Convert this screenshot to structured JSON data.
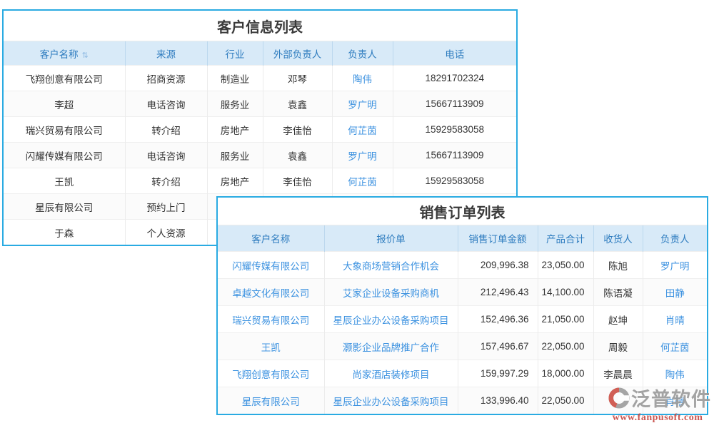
{
  "colors": {
    "table_border": "#2aabe2",
    "header_bg": "#d8eaf8",
    "header_text": "#2e7cbf",
    "link_text": "#3c92e0",
    "body_text": "#333333",
    "watermark_red": "#c4423c",
    "watermark_gray": "#979797"
  },
  "customer_table": {
    "title": "客户信息列表",
    "sort_icon": "⇅",
    "columns": [
      "客户名称",
      "来源",
      "行业",
      "外部负责人",
      "负责人",
      "电话"
    ],
    "rows": [
      {
        "name": "飞翔创意有限公司",
        "source": "招商资源",
        "industry": "制造业",
        "external": "邓琴",
        "owner": "陶伟",
        "phone": "18291702324"
      },
      {
        "name": "李超",
        "source": "电话咨询",
        "industry": "服务业",
        "external": "袁鑫",
        "owner": "罗广明",
        "phone": "15667113909"
      },
      {
        "name": "瑞兴贸易有限公司",
        "source": "转介绍",
        "industry": "房地产",
        "external": "李佳怡",
        "owner": "何芷茵",
        "phone": "15929583058"
      },
      {
        "name": "闪耀传媒有限公司",
        "source": "电话咨询",
        "industry": "服务业",
        "external": "袁鑫",
        "owner": "罗广明",
        "phone": "15667113909"
      },
      {
        "name": "王凯",
        "source": "转介绍",
        "industry": "房地产",
        "external": "李佳怡",
        "owner": "何芷茵",
        "phone": "15929583058"
      },
      {
        "name": "星辰有限公司",
        "source": "预约上门",
        "industry": "",
        "external": "",
        "owner": "",
        "phone": ""
      },
      {
        "name": "于森",
        "source": "个人资源",
        "industry": "",
        "external": "",
        "owner": "",
        "phone": ""
      }
    ]
  },
  "order_table": {
    "title": "销售订单列表",
    "columns": [
      "客户名称",
      "报价单",
      "销售订单金额",
      "产品合计",
      "收货人",
      "负责人"
    ],
    "rows": [
      {
        "customer": "闪耀传媒有限公司",
        "quote": "大象商场营销合作机会",
        "amount": "209,996.38",
        "product_total": "23,050.00",
        "consignee": "陈旭",
        "owner": "罗广明"
      },
      {
        "customer": "卓越文化有限公司",
        "quote": "艾家企业设备采购商机",
        "amount": "212,496.43",
        "product_total": "14,100.00",
        "consignee": "陈语凝",
        "owner": "田静"
      },
      {
        "customer": "瑞兴贸易有限公司",
        "quote": "星辰企业办公设备采购项目",
        "amount": "152,496.36",
        "product_total": "21,050.00",
        "consignee": "赵坤",
        "owner": "肖晴"
      },
      {
        "customer": "王凯",
        "quote": "灏影企业品牌推广合作",
        "amount": "157,496.67",
        "product_total": "22,050.00",
        "consignee": "周毅",
        "owner": "何芷茵"
      },
      {
        "customer": "飞翔创意有限公司",
        "quote": "尚家酒店装修项目",
        "amount": "159,997.29",
        "product_total": "18,000.00",
        "consignee": "李晨晨",
        "owner": "陶伟"
      },
      {
        "customer": "星辰有限公司",
        "quote": "星辰企业办公设备采购项目",
        "amount": "133,996.40",
        "product_total": "22,050.00",
        "consignee": "",
        "owner": "肖晴"
      }
    ]
  },
  "watermark": {
    "brand": "泛普软件",
    "url": "www.fanpusoft.com"
  }
}
